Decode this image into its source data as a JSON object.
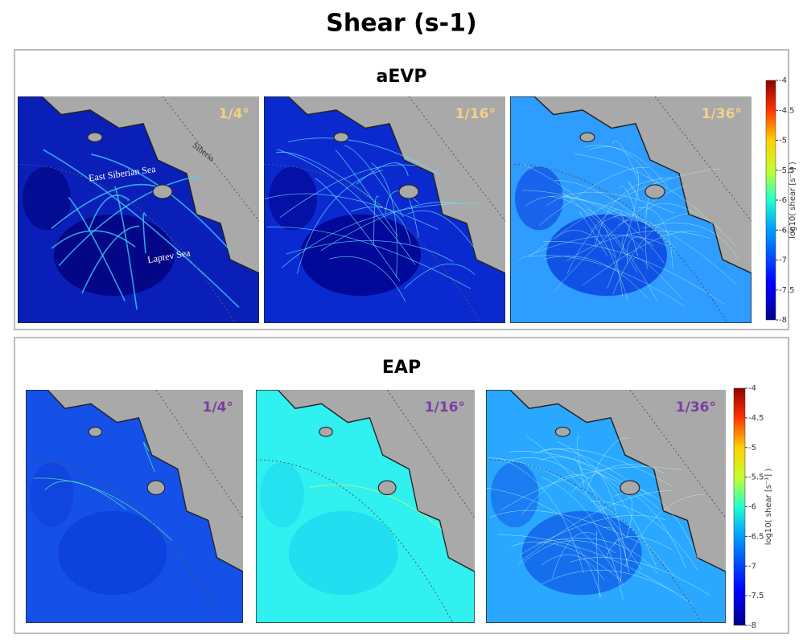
{
  "title": "Shear (s-1)",
  "groups": [
    {
      "name": "aEVP",
      "panels": [
        {
          "label": "1/4°"
        },
        {
          "label": "1/16°"
        },
        {
          "label": "1/36°"
        }
      ]
    },
    {
      "name": "EAP",
      "panels": [
        {
          "label": "1/4°"
        },
        {
          "label": "1/16°"
        },
        {
          "label": "1/36°"
        }
      ]
    }
  ],
  "map_labels": {
    "region": "Siberia",
    "sea1": "East Siberian Sea",
    "sea2": "Laptev Sea"
  },
  "colorbar": {
    "label": "log10( shear [s⁻¹] )",
    "ticks": [
      -4,
      -4.5,
      -5,
      -5.5,
      -6,
      -6.5,
      -7,
      -7.5,
      -8
    ],
    "lim": [
      -8,
      -4
    ]
  }
}
